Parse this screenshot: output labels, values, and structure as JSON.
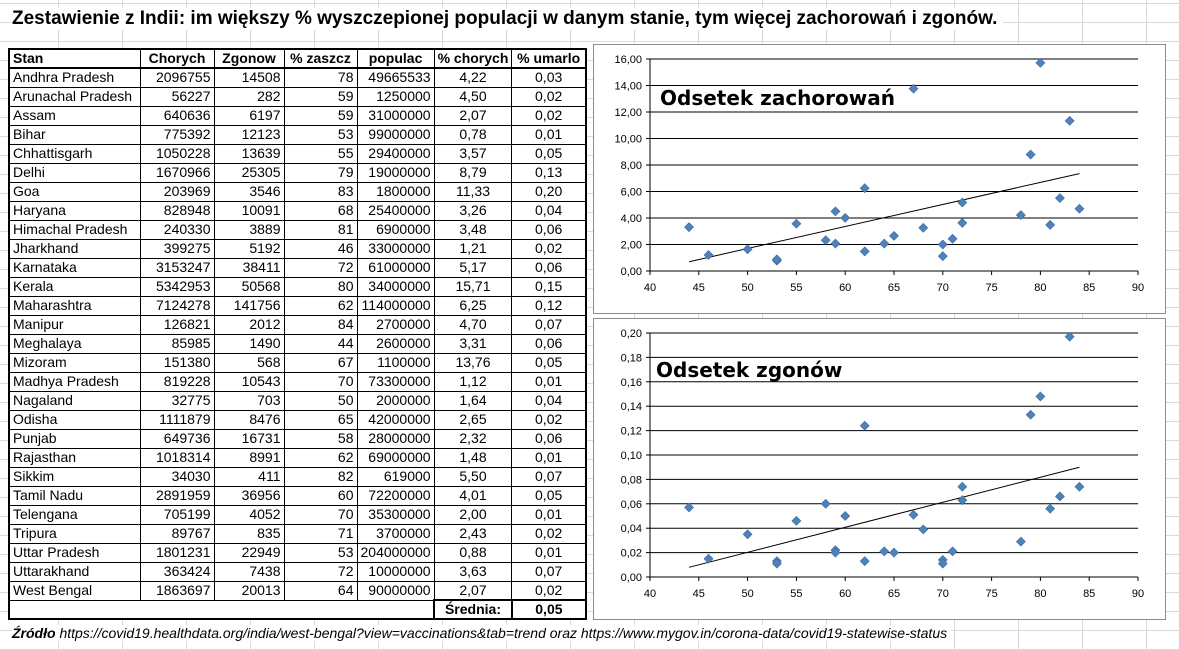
{
  "title": "Zestawienie z Indii: im większy % wyszczepionej populacji w danym stanie, tym więcej zachorowań i zgonów.",
  "table": {
    "headers": [
      "Stan",
      "Chorych",
      "Zgonow",
      "% zaszcz",
      "populac",
      "% chorych",
      "% umarlo"
    ],
    "rows": [
      [
        "Andhra Pradesh",
        "2096755",
        "14508",
        "78",
        "49665533",
        "4,22",
        "0,03"
      ],
      [
        "Arunachal Pradesh",
        "56227",
        "282",
        "59",
        "1250000",
        "4,50",
        "0,02"
      ],
      [
        "Assam",
        "640636",
        "6197",
        "59",
        "31000000",
        "2,07",
        "0,02"
      ],
      [
        "Bihar",
        "775392",
        "12123",
        "53",
        "99000000",
        "0,78",
        "0,01"
      ],
      [
        "Chhattisgarh",
        "1050228",
        "13639",
        "55",
        "29400000",
        "3,57",
        "0,05"
      ],
      [
        "Delhi",
        "1670966",
        "25305",
        "79",
        "19000000",
        "8,79",
        "0,13"
      ],
      [
        "Goa",
        "203969",
        "3546",
        "83",
        "1800000",
        "11,33",
        "0,20"
      ],
      [
        "Haryana",
        "828948",
        "10091",
        "68",
        "25400000",
        "3,26",
        "0,04"
      ],
      [
        "Himachal Pradesh",
        "240330",
        "3889",
        "81",
        "6900000",
        "3,48",
        "0,06"
      ],
      [
        "Jharkhand",
        "399275",
        "5192",
        "46",
        "33000000",
        "1,21",
        "0,02"
      ],
      [
        "Karnataka",
        "3153247",
        "38411",
        "72",
        "61000000",
        "5,17",
        "0,06"
      ],
      [
        "Kerala",
        "5342953",
        "50568",
        "80",
        "34000000",
        "15,71",
        "0,15"
      ],
      [
        "Maharashtra",
        "7124278",
        "141756",
        "62",
        "114000000",
        "6,25",
        "0,12"
      ],
      [
        "Manipur",
        "126821",
        "2012",
        "84",
        "2700000",
        "4,70",
        "0,07"
      ],
      [
        "Meghalaya",
        "85985",
        "1490",
        "44",
        "2600000",
        "3,31",
        "0,06"
      ],
      [
        "Mizoram",
        "151380",
        "568",
        "67",
        "1100000",
        "13,76",
        "0,05"
      ],
      [
        "Madhya Pradesh",
        "819228",
        "10543",
        "70",
        "73300000",
        "1,12",
        "0,01"
      ],
      [
        "Nagaland",
        "32775",
        "703",
        "50",
        "2000000",
        "1,64",
        "0,04"
      ],
      [
        "Odisha",
        "1111879",
        "8476",
        "65",
        "42000000",
        "2,65",
        "0,02"
      ],
      [
        "Punjab",
        "649736",
        "16731",
        "58",
        "28000000",
        "2,32",
        "0,06"
      ],
      [
        "Rajasthan",
        "1018314",
        "8991",
        "62",
        "69000000",
        "1,48",
        "0,01"
      ],
      [
        "Sikkim",
        "34030",
        "411",
        "82",
        "619000",
        "5,50",
        "0,07"
      ],
      [
        "Tamil Nadu",
        "2891959",
        "36956",
        "60",
        "72200000",
        "4,01",
        "0,05"
      ],
      [
        "Telengana",
        "705199",
        "4052",
        "70",
        "35300000",
        "2,00",
        "0,01"
      ],
      [
        "Tripura",
        "89767",
        "835",
        "71",
        "3700000",
        "2,43",
        "0,02"
      ],
      [
        "Uttar Pradesh",
        "1801231",
        "22949",
        "53",
        "204000000",
        "0,88",
        "0,01"
      ],
      [
        "Uttarakhand",
        "363424",
        "7438",
        "72",
        "10000000",
        "3,63",
        "0,07"
      ],
      [
        "West Bengal",
        "1863697",
        "20013",
        "64",
        "90000000",
        "2,07",
        "0,02"
      ]
    ],
    "footer_label": "Średnia:",
    "footer_value": "0,05"
  },
  "source": {
    "label": "Źródło",
    "text": "https://covid19.healthdata.org/india/west-bengal?view=vaccinations&tab=trend oraz https://www.mygov.in/corona-data/covid19-statewise-status"
  },
  "colors": {
    "marker": "#4f81bd",
    "trendline": "#000000",
    "grid": "#000000"
  },
  "chart_data": [
    {
      "type": "scatter",
      "title": "Odsetek zachorowań",
      "xlim": [
        40,
        90
      ],
      "xticks": [
        40,
        45,
        50,
        55,
        60,
        65,
        70,
        75,
        80,
        85,
        90
      ],
      "ylim": [
        0,
        16
      ],
      "yticks": [
        0,
        2,
        4,
        6,
        8,
        10,
        12,
        14,
        16
      ],
      "ytick_labels": [
        "0,00",
        "2,00",
        "4,00",
        "6,00",
        "8,00",
        "10,00",
        "12,00",
        "14,00",
        "16,00"
      ],
      "grid": "horizontal",
      "trendline": "linear",
      "points": [
        [
          78,
          4.22
        ],
        [
          59,
          4.5
        ],
        [
          59,
          2.07
        ],
        [
          53,
          0.78
        ],
        [
          55,
          3.57
        ],
        [
          79,
          8.79
        ],
        [
          83,
          11.33
        ],
        [
          68,
          3.26
        ],
        [
          81,
          3.48
        ],
        [
          46,
          1.21
        ],
        [
          72,
          5.17
        ],
        [
          80,
          15.71
        ],
        [
          62,
          6.25
        ],
        [
          84,
          4.7
        ],
        [
          44,
          3.31
        ],
        [
          67,
          13.76
        ],
        [
          70,
          1.12
        ],
        [
          50,
          1.64
        ],
        [
          65,
          2.65
        ],
        [
          58,
          2.32
        ],
        [
          62,
          1.48
        ],
        [
          82,
          5.5
        ],
        [
          60,
          4.01
        ],
        [
          70,
          2.0
        ],
        [
          71,
          2.43
        ],
        [
          53,
          0.88
        ],
        [
          72,
          3.63
        ],
        [
          64,
          2.07
        ]
      ]
    },
    {
      "type": "scatter",
      "title": "Odsetek zgonów",
      "xlim": [
        40,
        90
      ],
      "xticks": [
        40,
        45,
        50,
        55,
        60,
        65,
        70,
        75,
        80,
        85,
        90
      ],
      "ylim": [
        0,
        0.2
      ],
      "yticks": [
        0,
        0.02,
        0.04,
        0.06,
        0.08,
        0.1,
        0.12,
        0.14,
        0.16,
        0.18,
        0.2
      ],
      "ytick_labels": [
        "0,00",
        "0,02",
        "0,04",
        "0,06",
        "0,08",
        "0,10",
        "0,12",
        "0,14",
        "0,16",
        "0,18",
        "0,20"
      ],
      "grid": "horizontal",
      "trendline": "linear",
      "points": [
        [
          78,
          0.029
        ],
        [
          59,
          0.022
        ],
        [
          59,
          0.02
        ],
        [
          53,
          0.013
        ],
        [
          55,
          0.046
        ],
        [
          79,
          0.133
        ],
        [
          83,
          0.197
        ],
        [
          68,
          0.039
        ],
        [
          81,
          0.056
        ],
        [
          46,
          0.015
        ],
        [
          72,
          0.063
        ],
        [
          80,
          0.148
        ],
        [
          62,
          0.124
        ],
        [
          84,
          0.074
        ],
        [
          44,
          0.057
        ],
        [
          67,
          0.051
        ],
        [
          70,
          0.014
        ],
        [
          50,
          0.035
        ],
        [
          65,
          0.02
        ],
        [
          58,
          0.06
        ],
        [
          62,
          0.013
        ],
        [
          82,
          0.066
        ],
        [
          60,
          0.05
        ],
        [
          70,
          0.011
        ],
        [
          71,
          0.021
        ],
        [
          53,
          0.011
        ],
        [
          72,
          0.074
        ],
        [
          64,
          0.021
        ]
      ]
    }
  ]
}
